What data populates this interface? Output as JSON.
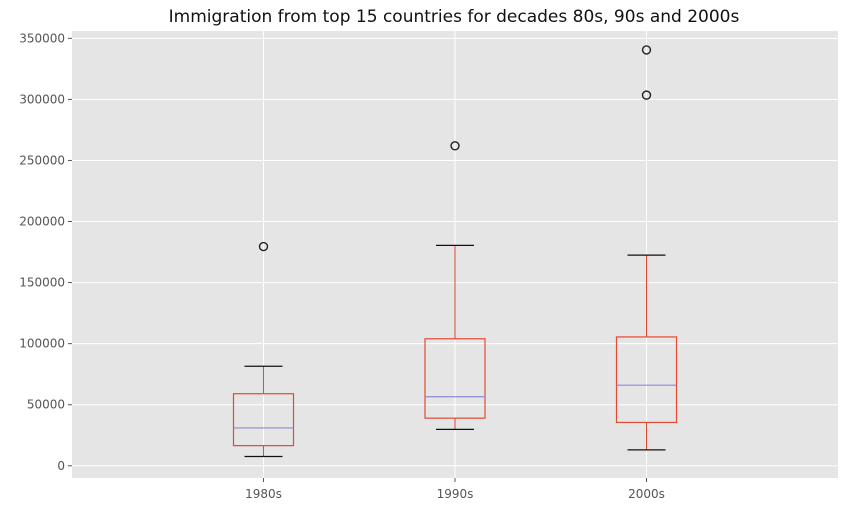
{
  "chart_data": {
    "type": "box",
    "title": "Immigration from top 15 countries for decades 80s, 90s and 2000s",
    "xlabel": "",
    "ylabel": "",
    "categories": [
      "1980s",
      "1990s",
      "2000s"
    ],
    "boxes": [
      {
        "category": "1980s",
        "whisker_low": 7600,
        "q1": 16500,
        "median": 31000,
        "q3": 59000,
        "whisker_high": 81500,
        "outliers": [
          179500
        ]
      },
      {
        "category": "1990s",
        "whisker_low": 29800,
        "q1": 39000,
        "median": 56500,
        "q3": 104000,
        "whisker_high": 180500,
        "outliers": [
          262000
        ]
      },
      {
        "category": "2000s",
        "whisker_low": 13000,
        "q1": 35500,
        "median": 66000,
        "q3": 105500,
        "whisker_high": 172500,
        "outliers": [
          303500,
          340500
        ]
      }
    ],
    "yticks": [
      0,
      50000,
      100000,
      150000,
      200000,
      250000,
      300000,
      350000
    ],
    "ylim": [
      -10000,
      356000
    ],
    "grid": true,
    "colors": {
      "background": "#e5e5e5",
      "grid": "#ffffff",
      "box": "#e24a33",
      "median": "#8e8bd6",
      "whisker_cap": "#111111",
      "outlier": "#222222"
    }
  }
}
